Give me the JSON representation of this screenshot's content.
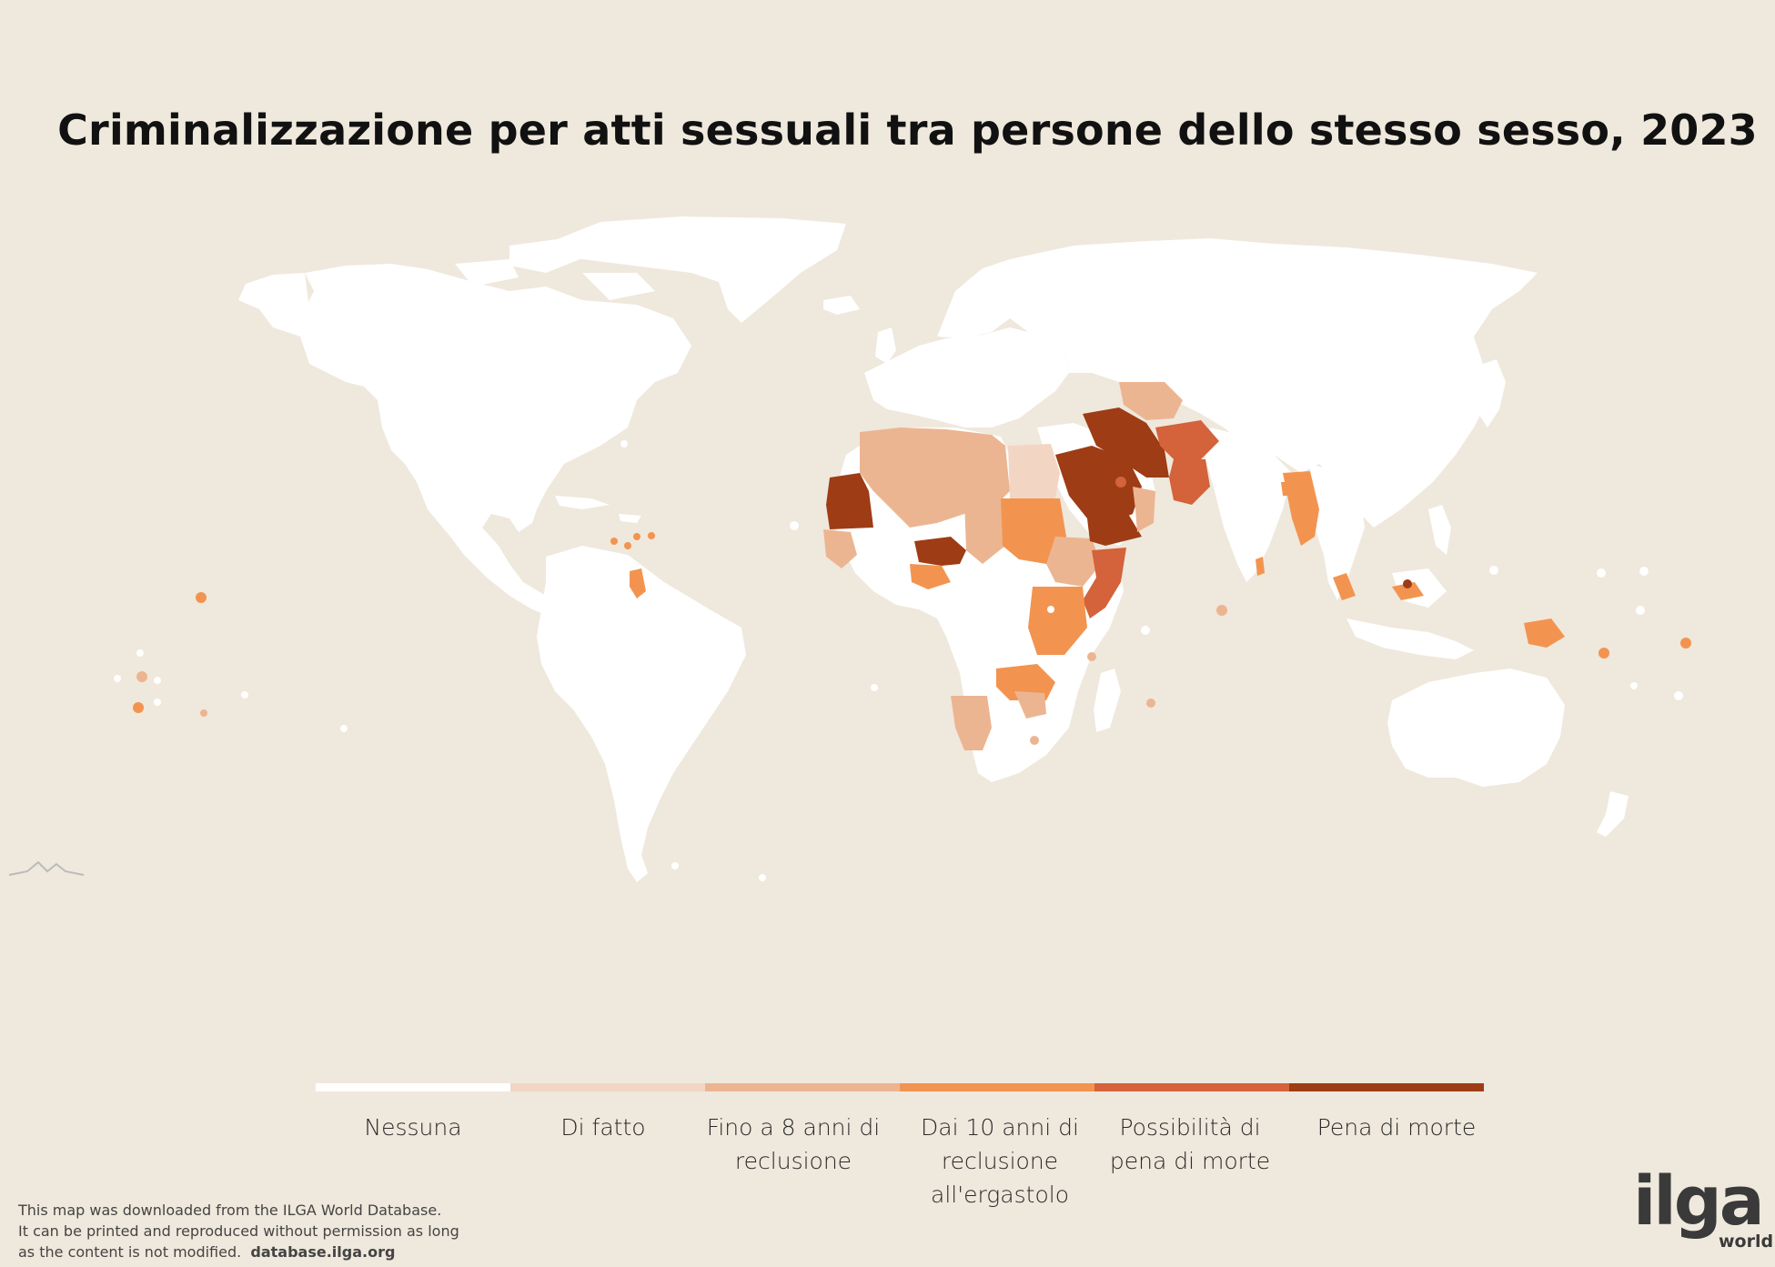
{
  "title": "Criminalizzazione per atti sessuali tra persone dello stesso sesso, 2023",
  "legend": [
    {
      "label": "Nessuna",
      "color": "#ffffff"
    },
    {
      "label": "Di fatto",
      "color": "#f2d6c3"
    },
    {
      "label": "Fino a 8 anni di reclusione",
      "color": "#ecb592"
    },
    {
      "label": "Dai 10 anni di reclusione all'ergastolo",
      "color": "#f29450"
    },
    {
      "label": "Possibilità di pena di morte",
      "color": "#d4623a"
    },
    {
      "label": "Pena di morte",
      "color": "#9e3c15"
    }
  ],
  "credit": {
    "line1": "This map was downloaded from the ILGA World Database.",
    "line2": "It can be printed and reproduced without permission as long",
    "line3": "as the content is not modified.",
    "url": "database.ilga.org"
  },
  "logo": {
    "main": "ilga",
    "sub": "world"
  },
  "map_regions": [
    {
      "name": "Mauritania",
      "category": "Pena di morte"
    },
    {
      "name": "Nigeria (stati settentrionali)",
      "category": "Pena di morte"
    },
    {
      "name": "Arabia Saudita",
      "category": "Pena di morte"
    },
    {
      "name": "Yemen",
      "category": "Pena di morte"
    },
    {
      "name": "Iran",
      "category": "Pena di morte"
    },
    {
      "name": "Brunei",
      "category": "Pena di morte"
    },
    {
      "name": "Afghanistan",
      "category": "Possibilità di pena di morte"
    },
    {
      "name": "Pakistan",
      "category": "Possibilità di pena di morte"
    },
    {
      "name": "Somalia",
      "category": "Possibilità di pena di morte"
    },
    {
      "name": "Qatar",
      "category": "Possibilità di pena di morte"
    },
    {
      "name": "Emirati Arabi Uniti",
      "category": "Possibilità di pena di morte"
    },
    {
      "name": "Sudan",
      "category": "Dai 10 anni di reclusione all'ergastolo"
    },
    {
      "name": "Kenya",
      "category": "Dai 10 anni di reclusione all'ergastolo"
    },
    {
      "name": "Tanzania",
      "category": "Dai 10 anni di reclusione all'ergastolo"
    },
    {
      "name": "Uganda",
      "category": "Dai 10 anni di reclusione all'ergastolo"
    },
    {
      "name": "Zambia",
      "category": "Dai 10 anni di reclusione all'ergastolo"
    },
    {
      "name": "Malawi",
      "category": "Dai 10 anni di reclusione all'ergastolo"
    },
    {
      "name": "Myanmar",
      "category": "Dai 10 anni di reclusione all'ergastolo"
    },
    {
      "name": "Malaysia",
      "category": "Dai 10 anni di reclusione all'ergastolo"
    },
    {
      "name": "Papua Nuova Guinea",
      "category": "Dai 10 anni di reclusione all'ergastolo"
    },
    {
      "name": "Guyana",
      "category": "Dai 10 anni di reclusione all'ergastolo"
    },
    {
      "name": "Sri Lanka",
      "category": "Dai 10 anni di reclusione all'ergastolo"
    },
    {
      "name": "Bangladesh",
      "category": "Dai 10 anni di reclusione all'ergastolo"
    },
    {
      "name": "Algeria",
      "category": "Fino a 8 anni di reclusione"
    },
    {
      "name": "Marocco",
      "category": "Fino a 8 anni di reclusione"
    },
    {
      "name": "Libia",
      "category": "Fino a 8 anni di reclusione"
    },
    {
      "name": "Ciad",
      "category": "Fino a 8 anni di reclusione"
    },
    {
      "name": "Etiopia",
      "category": "Fino a 8 anni di reclusione"
    },
    {
      "name": "Namibia",
      "category": "Fino a 8 anni di reclusione"
    },
    {
      "name": "Oman",
      "category": "Fino a 8 anni di reclusione"
    },
    {
      "name": "Turkmenistan",
      "category": "Fino a 8 anni di reclusione"
    },
    {
      "name": "Uzbekistan",
      "category": "Fino a 8 anni di reclusione"
    },
    {
      "name": "Senegal",
      "category": "Fino a 8 anni di reclusione"
    },
    {
      "name": "Egitto",
      "category": "Di fatto"
    }
  ]
}
